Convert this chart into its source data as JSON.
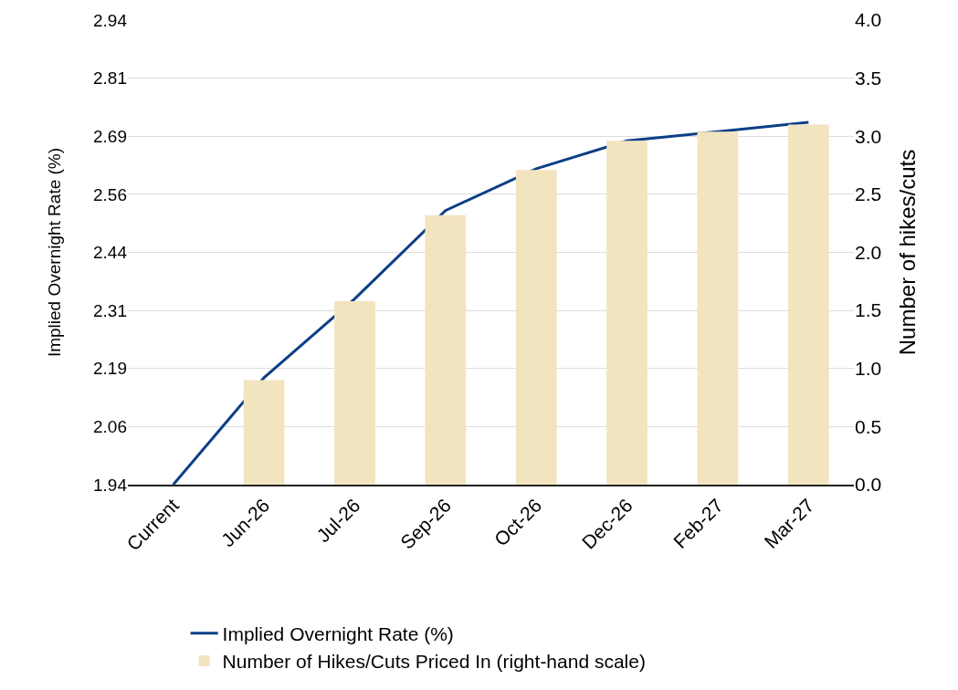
{
  "chart_data": {
    "type": "bar",
    "ylabel": "Implied Overnight Rate (%)",
    "y2label": "Number of hikes/cuts",
    "categories": [
      "Current",
      "Jun-26",
      "Jul-26",
      "Sep-26",
      "Oct-26",
      "Dec-26",
      "Feb-27",
      "Mar-27"
    ],
    "series": [
      {
        "name": "Implied Overnight Rate (%)",
        "type": "line",
        "color": "#0d3f86",
        "values": [
          1.94,
          2.17,
          2.34,
          2.53,
          2.62,
          2.68,
          2.7,
          2.72
        ]
      },
      {
        "name": "Number of Hikes/Cuts Priced In (right-hand scale)",
        "axis": "y2",
        "color": "#f2e4bf",
        "values": [
          null,
          0.9,
          1.58,
          2.32,
          2.71,
          2.96,
          3.04,
          3.1
        ]
      }
    ],
    "ylim": [
      1.94,
      2.94
    ],
    "yticks": [
      {
        "value": 1.94,
        "label": "1.94"
      },
      {
        "value": 2.065,
        "label": "2.06"
      },
      {
        "value": 2.19,
        "label": "2.19"
      },
      {
        "value": 2.315,
        "label": "2.31"
      },
      {
        "value": 2.44,
        "label": "2.44"
      },
      {
        "value": 2.565,
        "label": "2.56"
      },
      {
        "value": 2.69,
        "label": "2.69"
      },
      {
        "value": 2.815,
        "label": "2.81"
      },
      {
        "value": 2.94,
        "label": "2.94"
      }
    ],
    "y2lim": [
      0,
      4
    ],
    "y2ticks": [
      {
        "value": 0,
        "label": "0.0"
      },
      {
        "value": 0.5,
        "label": "0.5"
      },
      {
        "value": 1,
        "label": "1.0"
      },
      {
        "value": 1.5,
        "label": "1.5"
      },
      {
        "value": 2,
        "label": "2.0"
      },
      {
        "value": 2.5,
        "label": "2.5"
      },
      {
        "value": 3,
        "label": "3.0"
      },
      {
        "value": 3.5,
        "label": "3.5"
      },
      {
        "value": 4,
        "label": "4.0"
      }
    ],
    "grid": "y",
    "legend": "bottom",
    "marker": "none",
    "line_style": "solid"
  }
}
